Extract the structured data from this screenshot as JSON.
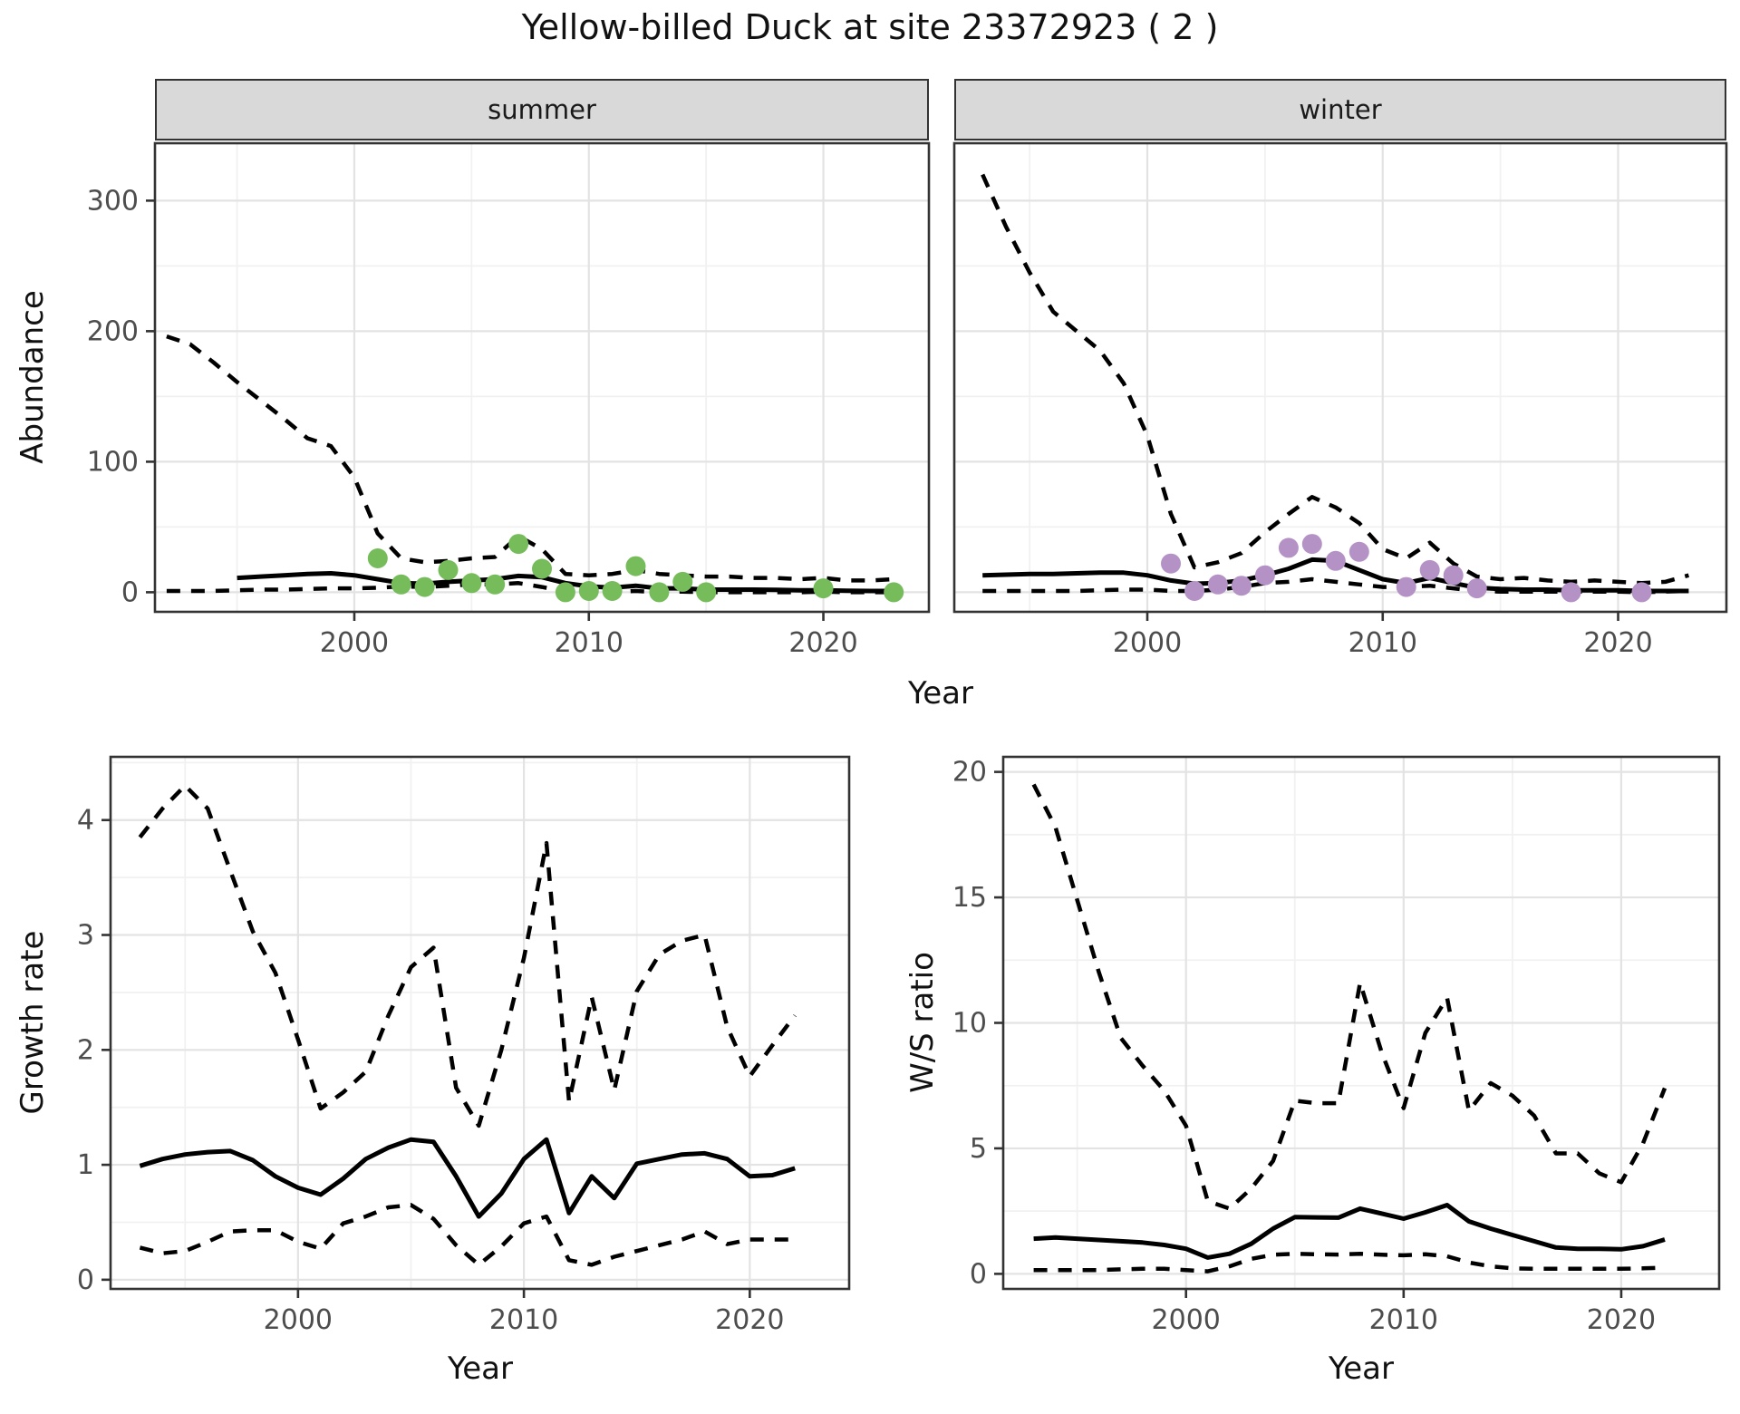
{
  "title": "Yellow-billed Duck at site 23372923 ( 2 )",
  "colors": {
    "summer_points": "#76bc5b",
    "winter_points": "#b592c6",
    "line": "#000000",
    "grid_major": "#e3e3e3",
    "grid_minor": "#f1f1f1",
    "panel_border": "#333333",
    "tick_mark": "#333333",
    "axis_text": "#4d4d4d",
    "strip_bg": "#d9d9d9"
  },
  "chart_data": [
    {
      "id": "abundance-summer",
      "type": "line",
      "facet_label": "summer",
      "xlabel": "Year",
      "ylabel": "Abundance",
      "xlim": [
        1991.5,
        2024.5
      ],
      "ylim": [
        -15,
        344
      ],
      "xticks": [
        2000,
        2010,
        2020
      ],
      "yticks": [
        0,
        100,
        200,
        300
      ],
      "x_minor": [
        1995,
        2005,
        2015
      ],
      "y_minor": [
        50,
        150,
        250
      ],
      "legend": "off",
      "series": [
        {
          "name": "upper-ci",
          "style": "dashed",
          "x": [
            1992,
            1993,
            1994,
            1995,
            1996,
            1997,
            1998,
            1999,
            2000,
            2001,
            2002,
            2003,
            2004,
            2005,
            2006,
            2007,
            2008,
            2009,
            2010,
            2011,
            2012,
            2013,
            2014,
            2015,
            2016,
            2017,
            2018,
            2019,
            2020,
            2021,
            2022,
            2023
          ],
          "y": [
            196,
            190,
            176,
            161,
            147,
            133,
            118,
            112,
            88,
            45,
            26,
            23,
            24,
            26,
            27,
            43,
            33,
            14,
            13,
            14,
            17,
            14,
            13,
            12,
            12,
            11,
            11,
            10,
            11,
            9,
            9,
            10
          ]
        },
        {
          "name": "fit",
          "style": "solid",
          "x": [
            1995,
            1996,
            1997,
            1998,
            1999,
            2000,
            2001,
            2002,
            2003,
            2004,
            2005,
            2006,
            2007,
            2008,
            2009,
            2010,
            2011,
            2012,
            2013,
            2014,
            2015,
            2016,
            2017,
            2018,
            2019,
            2020,
            2021,
            2022,
            2023
          ],
          "y": [
            11,
            12,
            13,
            14,
            14.5,
            13,
            10,
            7,
            6.5,
            8,
            9,
            10,
            12.5,
            11.5,
            7,
            4.5,
            3.5,
            5,
            3,
            3,
            2,
            2,
            2,
            1.8,
            1.5,
            1.5,
            1.2,
            1,
            1
          ]
        },
        {
          "name": "lower-ci",
          "style": "dashed",
          "x": [
            1992,
            1993,
            1994,
            1995,
            1996,
            1997,
            1998,
            1999,
            2000,
            2001,
            2002,
            2003,
            2004,
            2005,
            2006,
            2007,
            2008,
            2009,
            2010,
            2011,
            2012,
            2013,
            2014,
            2015,
            2016,
            2017,
            2018,
            2019,
            2020,
            2021,
            2022,
            2023
          ],
          "y": [
            1,
            1,
            1,
            1.5,
            2,
            2,
            2.5,
            3,
            3,
            3.5,
            4.5,
            4,
            5,
            6,
            6,
            7,
            4,
            0.5,
            0,
            0,
            1,
            0,
            0.5,
            0,
            0,
            0,
            0,
            0,
            0.5,
            0,
            0,
            0
          ]
        }
      ],
      "points": {
        "name": "observed-counts",
        "color_key": "summer_points",
        "x": [
          2001,
          2002,
          2003,
          2004,
          2005,
          2006,
          2007,
          2008,
          2009,
          2010,
          2011,
          2012,
          2013,
          2014,
          2015,
          2020,
          2023
        ],
        "y": [
          26,
          6,
          4,
          17,
          7,
          6,
          37,
          18,
          0,
          1,
          1,
          20,
          0,
          8,
          0,
          3,
          0
        ]
      }
    },
    {
      "id": "abundance-winter",
      "type": "line",
      "facet_label": "winter",
      "xlabel": "Year",
      "ylabel": "Abundance",
      "xlim": [
        1991.8,
        2024.6
      ],
      "ylim": [
        -15,
        344
      ],
      "xticks": [
        2000,
        2010,
        2020
      ],
      "yticks": [
        0,
        100,
        200,
        300
      ],
      "x_minor": [
        1995,
        2005,
        2015
      ],
      "y_minor": [
        50,
        150,
        250
      ],
      "legend": "off",
      "series": [
        {
          "name": "upper-ci",
          "style": "dashed",
          "x": [
            1993,
            1994,
            1995,
            1996,
            1997,
            1998,
            1999,
            2000,
            2001,
            2002,
            2003,
            2004,
            2005,
            2006,
            2007,
            2008,
            2009,
            2010,
            2011,
            2012,
            2013,
            2014,
            2015,
            2016,
            2017,
            2018,
            2019,
            2020,
            2021,
            2022,
            2023
          ],
          "y": [
            320,
            280,
            245,
            215,
            200,
            185,
            160,
            120,
            60,
            19,
            23,
            30,
            46,
            60,
            73,
            65,
            53,
            33,
            26,
            38,
            22,
            12,
            10,
            11,
            9,
            8,
            9,
            8,
            7,
            8,
            13
          ]
        },
        {
          "name": "fit",
          "style": "solid",
          "x": [
            1993,
            1994,
            1995,
            1996,
            1997,
            1998,
            1999,
            2000,
            2001,
            2002,
            2003,
            2004,
            2005,
            2006,
            2007,
            2008,
            2009,
            2010,
            2011,
            2012,
            2013,
            2014,
            2015,
            2016,
            2017,
            2018,
            2019,
            2020,
            2021,
            2022,
            2023
          ],
          "y": [
            13,
            13.5,
            14,
            14,
            14.5,
            15,
            15,
            13,
            9,
            6.5,
            7,
            9,
            13,
            18,
            25,
            24,
            17,
            10,
            7,
            11,
            7,
            3.5,
            2.5,
            2,
            2,
            1.5,
            1.5,
            1.5,
            1,
            1,
            1
          ]
        },
        {
          "name": "lower-ci",
          "style": "dashed",
          "x": [
            1993,
            1994,
            1995,
            1996,
            1997,
            1998,
            1999,
            2000,
            2001,
            2002,
            2003,
            2004,
            2005,
            2006,
            2007,
            2008,
            2009,
            2010,
            2011,
            2012,
            2013,
            2014,
            2015,
            2016,
            2017,
            2018,
            2019,
            2020,
            2021,
            2022,
            2023
          ],
          "y": [
            1,
            1,
            1,
            1,
            1,
            1.5,
            2,
            2,
            1,
            1,
            2,
            4,
            7,
            8,
            10,
            8,
            6,
            4,
            4,
            5,
            3,
            1,
            0.5,
            0.5,
            0.5,
            0.5,
            0.5,
            0.5,
            0,
            0.5,
            1
          ]
        }
      ],
      "points": {
        "name": "observed-counts",
        "color_key": "winter_points",
        "x": [
          2001,
          2002,
          2003,
          2004,
          2005,
          2006,
          2007,
          2008,
          2009,
          2011,
          2012,
          2013,
          2014,
          2018,
          2021
        ],
        "y": [
          22,
          1,
          6,
          5,
          13,
          34,
          37,
          24,
          31,
          4,
          17,
          13,
          3,
          0,
          0
        ]
      }
    },
    {
      "id": "growth-rate",
      "type": "line",
      "facet_label": "",
      "xlabel": "Year",
      "ylabel": "Growth rate",
      "xlim": [
        1991.7,
        2024.4
      ],
      "ylim": [
        -0.08,
        4.55
      ],
      "xticks": [
        2000,
        2010,
        2020
      ],
      "yticks": [
        0,
        1,
        2,
        3,
        4
      ],
      "x_minor": [
        1995,
        2005,
        2015
      ],
      "y_minor": [
        0.5,
        1.5,
        2.5,
        3.5,
        4.5
      ],
      "legend": "off",
      "series": [
        {
          "name": "upper-ci",
          "style": "dashed",
          "x": [
            1993,
            1994,
            1995,
            1996,
            1997,
            1998,
            1999,
            2000,
            2001,
            2002,
            2003,
            2004,
            2005,
            2006,
            2007,
            2008,
            2009,
            2010,
            2011,
            2012,
            2013,
            2014,
            2015,
            2016,
            2017,
            2018,
            2019,
            2020,
            2021,
            2022
          ],
          "y": [
            3.85,
            4.1,
            4.3,
            4.1,
            3.56,
            3.03,
            2.67,
            2.09,
            1.49,
            1.63,
            1.81,
            2.3,
            2.72,
            2.89,
            1.67,
            1.34,
            2.0,
            2.8,
            3.8,
            1.55,
            2.46,
            1.65,
            2.51,
            2.83,
            2.95,
            3.0,
            2.2,
            1.77,
            2.04,
            2.3
          ]
        },
        {
          "name": "fit",
          "style": "solid",
          "x": [
            1993,
            1994,
            1995,
            1996,
            1997,
            1998,
            1999,
            2000,
            2001,
            2002,
            2003,
            2004,
            2005,
            2006,
            2007,
            2008,
            2009,
            2010,
            2011,
            2012,
            2013,
            2014,
            2015,
            2016,
            2017,
            2018,
            2019,
            2020,
            2021,
            2022
          ],
          "y": [
            0.99,
            1.05,
            1.09,
            1.11,
            1.12,
            1.04,
            0.9,
            0.8,
            0.74,
            0.88,
            1.05,
            1.15,
            1.22,
            1.2,
            0.9,
            0.55,
            0.75,
            1.05,
            1.22,
            0.58,
            0.9,
            0.71,
            1.01,
            1.05,
            1.09,
            1.1,
            1.05,
            0.9,
            0.91,
            0.97
          ]
        },
        {
          "name": "lower-ci",
          "style": "dashed",
          "x": [
            1993,
            1994,
            1995,
            1996,
            1997,
            1998,
            1999,
            2000,
            2001,
            2002,
            2003,
            2004,
            2005,
            2006,
            2007,
            2008,
            2009,
            2010,
            2011,
            2012,
            2013,
            2014,
            2015,
            2016,
            2017,
            2018,
            2019,
            2020,
            2021,
            2022
          ],
          "y": [
            0.28,
            0.23,
            0.25,
            0.33,
            0.42,
            0.43,
            0.43,
            0.33,
            0.27,
            0.49,
            0.55,
            0.63,
            0.65,
            0.53,
            0.3,
            0.13,
            0.29,
            0.49,
            0.55,
            0.17,
            0.13,
            0.2,
            0.25,
            0.3,
            0.35,
            0.42,
            0.31,
            0.35,
            0.35,
            0.35
          ]
        }
      ],
      "points": null
    },
    {
      "id": "ws-ratio",
      "type": "line",
      "facet_label": "",
      "xlabel": "Year",
      "ylabel": "W/S ratio",
      "xlim": [
        1991.6,
        2024.5
      ],
      "ylim": [
        -0.6,
        20.6
      ],
      "xticks": [
        2000,
        2010,
        2020
      ],
      "yticks": [
        0,
        5,
        10,
        15,
        20
      ],
      "x_minor": [
        1995,
        2005,
        2015
      ],
      "y_minor": [
        2.5,
        7.5,
        12.5,
        17.5
      ],
      "legend": "off",
      "series": [
        {
          "name": "upper-ci",
          "style": "dashed",
          "x": [
            1993,
            1994,
            1995,
            1996,
            1997,
            1998,
            1999,
            2000,
            2001,
            2002,
            2003,
            2004,
            2005,
            2006,
            2007,
            2008,
            2009,
            2010,
            2011,
            2012,
            2013,
            2014,
            2015,
            2016,
            2017,
            2018,
            2019,
            2020,
            2021,
            2022
          ],
          "y": [
            19.5,
            17.8,
            14.9,
            12.0,
            9.4,
            8.3,
            7.3,
            5.9,
            2.9,
            2.6,
            3.4,
            4.5,
            6.9,
            6.8,
            6.8,
            11.6,
            8.8,
            6.6,
            9.6,
            11.0,
            6.5,
            7.6,
            7.1,
            6.3,
            4.8,
            4.8,
            4.0,
            3.65,
            5.2,
            7.4
          ]
        },
        {
          "name": "fit",
          "style": "solid",
          "x": [
            1993,
            1994,
            1995,
            1996,
            1997,
            1998,
            1999,
            2000,
            2001,
            2002,
            2003,
            2004,
            2005,
            2006,
            2007,
            2008,
            2009,
            2010,
            2011,
            2012,
            2013,
            2014,
            2015,
            2016,
            2017,
            2018,
            2019,
            2020,
            2021,
            2022
          ],
          "y": [
            1.4,
            1.45,
            1.4,
            1.35,
            1.3,
            1.25,
            1.15,
            1.0,
            0.65,
            0.8,
            1.2,
            1.8,
            2.26,
            2.25,
            2.24,
            2.6,
            2.4,
            2.2,
            2.45,
            2.74,
            2.09,
            1.8,
            1.55,
            1.3,
            1.05,
            1.0,
            1.0,
            0.98,
            1.1,
            1.37
          ]
        },
        {
          "name": "lower-ci",
          "style": "dashed",
          "x": [
            1993,
            1994,
            1995,
            1996,
            1997,
            1998,
            1999,
            2000,
            2001,
            2002,
            2003,
            2004,
            2005,
            2006,
            2007,
            2008,
            2009,
            2010,
            2011,
            2012,
            2013,
            2014,
            2015,
            2016,
            2017,
            2018,
            2019,
            2020,
            2021,
            2022
          ],
          "y": [
            0.15,
            0.15,
            0.15,
            0.15,
            0.18,
            0.2,
            0.2,
            0.15,
            0.1,
            0.3,
            0.6,
            0.76,
            0.8,
            0.78,
            0.77,
            0.8,
            0.76,
            0.74,
            0.78,
            0.7,
            0.45,
            0.3,
            0.22,
            0.2,
            0.2,
            0.2,
            0.2,
            0.2,
            0.22,
            0.25
          ]
        }
      ],
      "points": null
    }
  ]
}
